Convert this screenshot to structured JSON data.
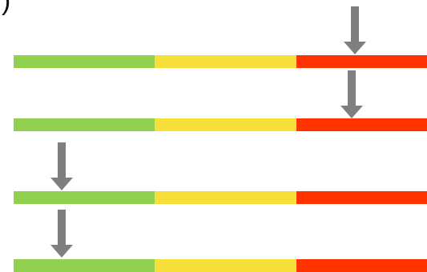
{
  "header": {
    "glyph": ")"
  },
  "colors": {
    "green": "#92d050",
    "yellow": "#f7df3a",
    "red": "#ff3300",
    "arrow": "#7f7f7f"
  },
  "scales": [
    {
      "segments": [
        "green",
        "yellow",
        "red"
      ],
      "marker": "red"
    },
    {
      "segments": [
        "green",
        "yellow",
        "red"
      ],
      "marker": "red"
    },
    {
      "segments": [
        "green",
        "yellow",
        "red"
      ],
      "marker": "green"
    },
    {
      "segments": [
        "green",
        "yellow",
        "red"
      ],
      "marker": "green"
    }
  ]
}
